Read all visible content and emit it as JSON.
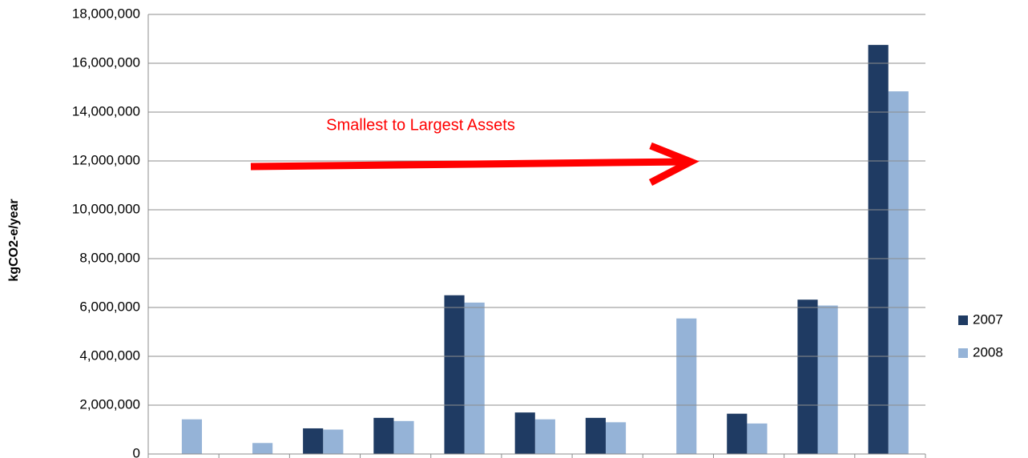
{
  "chart_data": {
    "type": "bar",
    "annotation": "Smallest to Largest Assets",
    "y_label": "kgCO2-e/year",
    "categories": [
      null,
      null,
      null,
      null,
      null,
      null,
      null,
      null,
      null,
      null,
      null
    ],
    "series": [
      {
        "name": "2007",
        "color": "#1f3b63",
        "values": [
          null,
          null,
          1050000,
          1480000,
          6500000,
          1700000,
          1480000,
          null,
          1650000,
          6320000,
          16750000
        ]
      },
      {
        "name": "2008",
        "color": "#95b3d7",
        "values": [
          1420000,
          450000,
          1000000,
          1350000,
          6200000,
          1420000,
          1300000,
          5550000,
          1250000,
          6080000,
          14850000
        ]
      }
    ],
    "ylim": [
      0,
      18000000
    ],
    "yticks": [
      0,
      {
        "value": 2000000,
        "label": "2,000,000"
      },
      {
        "value": 4000000,
        "label": "4,000,000"
      },
      {
        "value": 6000000,
        "label": "6,000,000"
      },
      {
        "value": 8000000,
        "label": "8,000,000"
      },
      {
        "value": 10000000,
        "label": "10,000,000"
      },
      {
        "value": 12000000,
        "label": "12,000,000"
      },
      {
        "value": 14000000,
        "label": "14,000,000"
      },
      {
        "value": 16000000,
        "label": "16,000,000"
      },
      {
        "value": 18000000,
        "label": "18,000,000"
      }
    ],
    "grid": true,
    "legend": "right"
  }
}
